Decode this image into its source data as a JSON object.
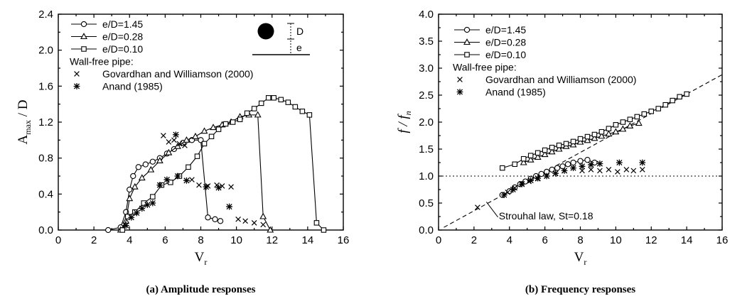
{
  "chart_data": [
    {
      "type": "line",
      "caption": "(a) Amplitude responses",
      "xlabel": "V",
      "xlabel_sub": "r",
      "ylabel": "A",
      "ylabel_sub": "max",
      "ylabel_suffix": " / D",
      "xlim": [
        0,
        16
      ],
      "ylim": [
        0,
        2.4
      ],
      "xticks": [
        "0",
        "2",
        "4",
        "6",
        "8",
        "10",
        "12",
        "14",
        "16"
      ],
      "yticks": [
        "0.0",
        "0.4",
        "0.8",
        "1.2",
        "1.6",
        "2.0",
        "2.4"
      ],
      "legend_placement": "top-left",
      "legend_heading": "Wall-free pipe:",
      "inset_labels": [
        "D",
        "e"
      ],
      "series": [
        {
          "name": "e/D=1.45",
          "marker": "circle",
          "line": true,
          "x": [
            2.8,
            3.5,
            3.8,
            4.0,
            4.2,
            4.5,
            4.9,
            5.3,
            5.7,
            6.1,
            6.5,
            7.0,
            7.5,
            8.0,
            8.4,
            8.8,
            9.1
          ],
          "y": [
            0.0,
            0.03,
            0.2,
            0.45,
            0.6,
            0.7,
            0.73,
            0.76,
            0.8,
            0.85,
            0.9,
            0.97,
            1.0,
            1.0,
            0.14,
            0.12,
            0.1
          ]
        },
        {
          "name": "e/D=0.28",
          "marker": "triangle",
          "line": true,
          "x": [
            3.5,
            3.8,
            4.0,
            4.3,
            4.7,
            5.2,
            5.7,
            6.2,
            6.7,
            7.2,
            7.7,
            8.2,
            8.7,
            9.2,
            9.7,
            10.2,
            10.7,
            11.2,
            11.5,
            11.9
          ],
          "y": [
            0.0,
            0.1,
            0.35,
            0.48,
            0.58,
            0.67,
            0.77,
            0.86,
            0.93,
            1.0,
            1.04,
            1.1,
            1.14,
            1.17,
            1.2,
            1.26,
            1.28,
            1.28,
            0.15,
            0.0
          ]
        },
        {
          "name": "e/D=0.10",
          "marker": "square",
          "line": true,
          "x": [
            3.6,
            3.9,
            4.3,
            4.8,
            5.3,
            5.8,
            6.3,
            6.8,
            7.3,
            7.8,
            8.2,
            8.6,
            9.0,
            9.4,
            9.8,
            10.2,
            10.6,
            11.0,
            11.4,
            11.8,
            12.1,
            12.5,
            12.9,
            13.3,
            13.7,
            14.1,
            14.5,
            14.9
          ],
          "y": [
            0.0,
            0.15,
            0.2,
            0.3,
            0.37,
            0.5,
            0.53,
            0.6,
            0.7,
            0.82,
            0.96,
            1.04,
            1.12,
            1.18,
            1.2,
            1.23,
            1.3,
            1.35,
            1.41,
            1.47,
            1.47,
            1.45,
            1.42,
            1.37,
            1.32,
            1.28,
            0.08,
            0.0
          ]
        },
        {
          "name": "Govardhan and Williamson (2000)",
          "marker": "x",
          "line": false,
          "x": [
            5.9,
            6.2,
            6.5,
            6.8,
            7.1,
            7.5,
            7.9,
            8.4,
            8.9,
            9.2,
            9.7,
            10.1,
            10.5,
            11.0,
            11.5
          ],
          "y": [
            1.05,
            0.98,
            1.0,
            0.96,
            0.94,
            0.56,
            0.5,
            0.49,
            0.5,
            0.49,
            0.48,
            0.12,
            0.1,
            0.08,
            0.06
          ]
        },
        {
          "name": "Anand (1985)",
          "marker": "star",
          "line": false,
          "x": [
            3.8,
            4.1,
            4.4,
            4.7,
            5.0,
            5.3,
            5.7,
            6.1,
            6.6,
            6.7,
            7.2,
            8.3,
            9.0,
            9.6
          ],
          "y": [
            0.05,
            0.14,
            0.19,
            0.24,
            0.28,
            0.3,
            0.5,
            0.56,
            1.06,
            0.6,
            0.55,
            0.48,
            0.47,
            0.26
          ]
        }
      ]
    },
    {
      "type": "line",
      "caption": "(b) Frequency responses",
      "xlabel": "V",
      "xlabel_sub": "r",
      "ylabel": "f / f",
      "ylabel_sub": "n",
      "ylabel_suffix": "",
      "xlim": [
        0,
        16
      ],
      "ylim": [
        0,
        4.0
      ],
      "xticks": [
        "0",
        "2",
        "4",
        "6",
        "8",
        "10",
        "12",
        "14",
        "16"
      ],
      "yticks": [
        "0.0",
        "0.5",
        "1.0",
        "1.5",
        "2.0",
        "2.5",
        "3.0",
        "3.5",
        "4.0"
      ],
      "legend_placement": "top-left",
      "legend_heading": "Wall-free pipe:",
      "annotation": "Strouhal law, St=0.18",
      "reference_lines": [
        {
          "kind": "dashed",
          "x": [
            0.3,
            16
          ],
          "y": [
            0.05,
            2.88
          ]
        },
        {
          "kind": "dotted",
          "x": [
            0,
            16
          ],
          "y": [
            1.0,
            1.0
          ]
        }
      ],
      "series": [
        {
          "name": "e/D=1.45",
          "marker": "circle",
          "line": true,
          "x": [
            3.6,
            4.0,
            4.3,
            4.6,
            4.9,
            5.2,
            5.5,
            5.8,
            6.1,
            6.4,
            6.7,
            7.0,
            7.3,
            7.6,
            8.0,
            8.4,
            8.8
          ],
          "y": [
            0.65,
            0.72,
            0.79,
            0.85,
            0.9,
            0.95,
            1.0,
            1.04,
            1.08,
            1.12,
            1.15,
            1.18,
            1.22,
            1.25,
            1.28,
            1.3,
            1.25
          ]
        },
        {
          "name": "e/D=0.28",
          "marker": "triangle",
          "line": true,
          "x": [
            4.8,
            5.2,
            5.6,
            6.0,
            6.4,
            6.8,
            7.2,
            7.6,
            8.0,
            8.4,
            8.8,
            9.2,
            9.6,
            10.0,
            10.4,
            10.8,
            11.3
          ],
          "y": [
            1.25,
            1.3,
            1.35,
            1.4,
            1.45,
            1.5,
            1.55,
            1.58,
            1.63,
            1.66,
            1.7,
            1.74,
            1.78,
            1.82,
            1.87,
            1.93,
            1.98
          ]
        },
        {
          "name": "e/D=0.10",
          "marker": "square",
          "line": true,
          "x": [
            3.6,
            4.3,
            4.8,
            5.2,
            5.6,
            6.0,
            6.4,
            6.8,
            7.2,
            7.6,
            8.0,
            8.4,
            8.8,
            9.2,
            9.6,
            10.0,
            10.4,
            10.8,
            11.2,
            11.6,
            12.0,
            12.4,
            12.8,
            13.2,
            13.6,
            14.0
          ],
          "y": [
            1.15,
            1.22,
            1.32,
            1.38,
            1.43,
            1.48,
            1.53,
            1.57,
            1.6,
            1.64,
            1.69,
            1.73,
            1.77,
            1.82,
            1.88,
            1.95,
            2.0,
            2.05,
            2.1,
            2.15,
            2.2,
            2.25,
            2.32,
            2.4,
            2.47,
            2.52
          ]
        },
        {
          "name": "Govardhan and Williamson (2000)",
          "marker": "x",
          "line": false,
          "x": [
            2.2,
            3.9,
            4.3,
            4.7,
            5.1,
            5.6,
            6.1,
            6.6,
            7.1,
            7.6,
            8.1,
            8.6,
            9.1,
            9.6,
            10.1,
            10.6,
            11.0,
            11.5
          ],
          "y": [
            0.42,
            0.7,
            0.78,
            0.86,
            0.9,
            0.95,
            1.0,
            1.05,
            1.1,
            1.15,
            1.1,
            1.12,
            1.1,
            1.12,
            1.08,
            1.12,
            1.1,
            1.12
          ]
        },
        {
          "name": "Anand (1985)",
          "marker": "star",
          "line": false,
          "x": [
            3.7,
            4.2,
            4.7,
            5.2,
            5.6,
            6.1,
            6.6,
            7.1,
            7.6,
            8.1,
            8.6,
            9.1,
            10.2,
            11.5
          ],
          "y": [
            0.65,
            0.75,
            0.85,
            0.92,
            0.96,
            1.0,
            1.05,
            1.1,
            1.15,
            1.18,
            1.21,
            1.23,
            1.25,
            1.25
          ]
        }
      ]
    }
  ]
}
